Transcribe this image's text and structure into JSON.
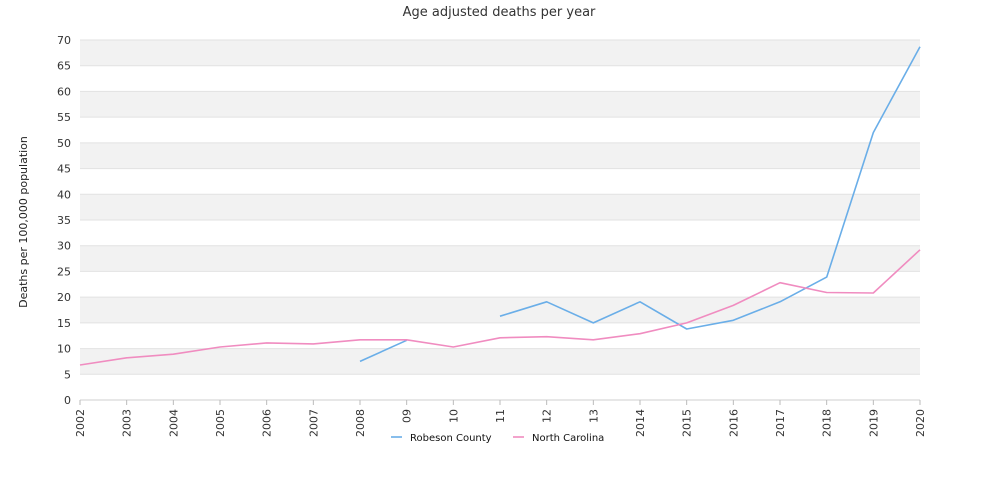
{
  "chart_data": {
    "type": "line",
    "title": "Age adjusted deaths per year",
    "xlabel": "",
    "ylabel": "Deaths per 100,000 population",
    "categories": [
      "2002",
      "2003",
      "2004",
      "2005",
      "2006",
      "2007",
      "2008",
      "09",
      "10",
      "11",
      "12",
      "13",
      "2014",
      "2015",
      "2016",
      "2017",
      "2018",
      "2019",
      "2020"
    ],
    "ylim": [
      0,
      70
    ],
    "yticks": [
      0,
      5,
      10,
      15,
      20,
      25,
      30,
      35,
      40,
      45,
      50,
      55,
      60,
      65,
      70
    ],
    "grid": "horizontal bands",
    "legend_position": "bottom",
    "series": [
      {
        "name": "Robeson County",
        "color": "#6aaee8",
        "values": [
          null,
          null,
          null,
          null,
          null,
          null,
          7.5,
          11.6,
          null,
          16.3,
          19.1,
          15.0,
          19.1,
          13.8,
          15.5,
          19.1,
          23.9,
          52.0,
          68.7
        ]
      },
      {
        "name": "North Carolina",
        "color": "#f08cc0",
        "values": [
          6.8,
          8.2,
          8.9,
          10.3,
          11.1,
          10.9,
          11.7,
          11.7,
          10.3,
          12.1,
          12.3,
          11.7,
          12.9,
          15.0,
          18.4,
          22.8,
          20.9,
          20.8,
          29.2
        ]
      }
    ]
  }
}
